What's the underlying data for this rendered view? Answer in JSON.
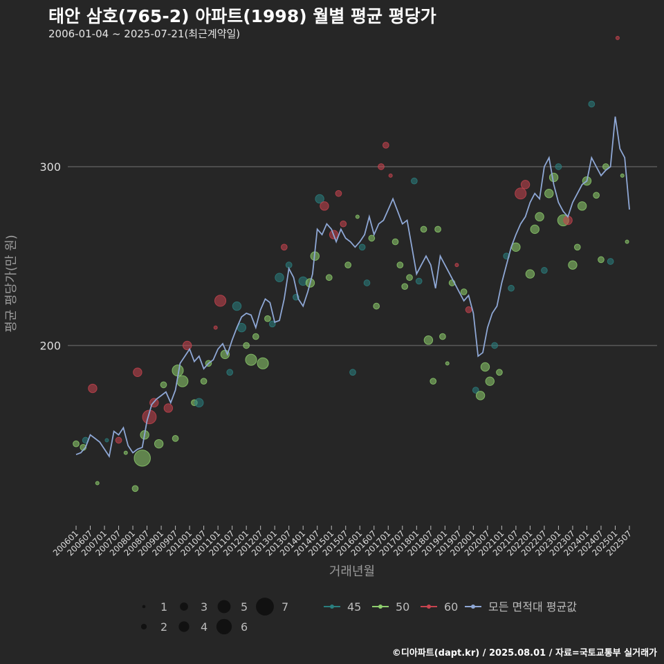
{
  "header": {
    "title": "태안 삼호(765-2) 아파트(1998) 월별 평균 평당가",
    "subtitle": "2006-01-04 ~ 2025-07-21(최근계약일)"
  },
  "footer": "©디아파트(dapt.kr) / 2025.08.01 / 자료=국토교통부 실거래가",
  "colors": {
    "background": "#262626",
    "grid": "#5a5a5a",
    "s45": "#2a7f7f",
    "s50": "#8fcf6e",
    "s60": "#c8444f",
    "avg": "#8fa8d6",
    "legend_size": "#111111"
  },
  "chart_data": {
    "type": "scatter",
    "xlabel": "거래년월",
    "ylabel": "평균 평당가(만 원)",
    "ylim": [
      100,
      370
    ],
    "yticks": [
      200,
      300
    ],
    "grid": true,
    "x_ticks": [
      "200601",
      "200607",
      "200701",
      "200707",
      "200801",
      "200807",
      "200901",
      "200907",
      "201001",
      "201007",
      "201101",
      "201107",
      "201201",
      "201207",
      "201301",
      "201307",
      "201401",
      "201407",
      "201501",
      "201507",
      "201601",
      "201607",
      "201701",
      "201707",
      "201801",
      "201807",
      "201901",
      "201907",
      "202001",
      "202007",
      "202101",
      "202107",
      "202201",
      "202207",
      "202301",
      "202307",
      "202401",
      "202407",
      "202501",
      "202507"
    ],
    "size_legend": {
      "title": "",
      "values": [
        1,
        2,
        3,
        4,
        5,
        6,
        7
      ]
    },
    "series_legend": [
      {
        "name": "45",
        "color_key": "s45"
      },
      {
        "name": "50",
        "color_key": "s50"
      },
      {
        "name": "60",
        "color_key": "s60"
      },
      {
        "name": "모든 면적대 평균값",
        "color_key": "avg"
      }
    ],
    "avg_line": [
      [
        "2006-01",
        139
      ],
      [
        "2006-03",
        140
      ],
      [
        "2006-05",
        143
      ],
      [
        "2006-07",
        150
      ],
      [
        "2006-09",
        148
      ],
      [
        "2006-11",
        146
      ],
      [
        "2007-01",
        142
      ],
      [
        "2007-03",
        138
      ],
      [
        "2007-05",
        152
      ],
      [
        "2007-07",
        150
      ],
      [
        "2007-09",
        154
      ],
      [
        "2007-11",
        144
      ],
      [
        "2008-01",
        140
      ],
      [
        "2008-03",
        142
      ],
      [
        "2008-05",
        143
      ],
      [
        "2008-07",
        158
      ],
      [
        "2008-09",
        167
      ],
      [
        "2008-11",
        170
      ],
      [
        "2009-01",
        172
      ],
      [
        "2009-03",
        174
      ],
      [
        "2009-05",
        168
      ],
      [
        "2009-07",
        175
      ],
      [
        "2009-09",
        190
      ],
      [
        "2009-11",
        194
      ],
      [
        "2010-01",
        198
      ],
      [
        "2010-03",
        191
      ],
      [
        "2010-05",
        194
      ],
      [
        "2010-07",
        187
      ],
      [
        "2010-09",
        190
      ],
      [
        "2010-11",
        192
      ],
      [
        "2011-01",
        198
      ],
      [
        "2011-03",
        201
      ],
      [
        "2011-05",
        195
      ],
      [
        "2011-07",
        203
      ],
      [
        "2011-09",
        210
      ],
      [
        "2011-11",
        216
      ],
      [
        "2012-01",
        218
      ],
      [
        "2012-03",
        217
      ],
      [
        "2012-05",
        210
      ],
      [
        "2012-07",
        220
      ],
      [
        "2012-09",
        226
      ],
      [
        "2012-11",
        224
      ],
      [
        "2013-01",
        213
      ],
      [
        "2013-03",
        214
      ],
      [
        "2013-05",
        226
      ],
      [
        "2013-07",
        243
      ],
      [
        "2013-09",
        238
      ],
      [
        "2013-11",
        226
      ],
      [
        "2014-01",
        222
      ],
      [
        "2014-03",
        230
      ],
      [
        "2014-05",
        240
      ],
      [
        "2014-07",
        265
      ],
      [
        "2014-09",
        262
      ],
      [
        "2014-11",
        268
      ],
      [
        "2015-01",
        265
      ],
      [
        "2015-03",
        258
      ],
      [
        "2015-05",
        265
      ],
      [
        "2015-07",
        260
      ],
      [
        "2015-09",
        258
      ],
      [
        "2015-11",
        255
      ],
      [
        "2016-01",
        258
      ],
      [
        "2016-03",
        262
      ],
      [
        "2016-05",
        272
      ],
      [
        "2016-07",
        262
      ],
      [
        "2016-09",
        268
      ],
      [
        "2016-11",
        270
      ],
      [
        "2017-01",
        276
      ],
      [
        "2017-03",
        282
      ],
      [
        "2017-05",
        275
      ],
      [
        "2017-07",
        268
      ],
      [
        "2017-09",
        270
      ],
      [
        "2017-11",
        255
      ],
      [
        "2018-01",
        240
      ],
      [
        "2018-03",
        245
      ],
      [
        "2018-05",
        250
      ],
      [
        "2018-07",
        245
      ],
      [
        "2018-09",
        232
      ],
      [
        "2018-11",
        250
      ],
      [
        "2019-01",
        245
      ],
      [
        "2019-03",
        240
      ],
      [
        "2019-05",
        235
      ],
      [
        "2019-07",
        230
      ],
      [
        "2019-09",
        225
      ],
      [
        "2019-11",
        228
      ],
      [
        "2020-01",
        218
      ],
      [
        "2020-03",
        194
      ],
      [
        "2020-05",
        196
      ],
      [
        "2020-07",
        210
      ],
      [
        "2020-09",
        218
      ],
      [
        "2020-11",
        222
      ],
      [
        "2021-01",
        235
      ],
      [
        "2021-03",
        245
      ],
      [
        "2021-05",
        255
      ],
      [
        "2021-07",
        262
      ],
      [
        "2021-09",
        268
      ],
      [
        "2021-11",
        272
      ],
      [
        "2022-01",
        280
      ],
      [
        "2022-03",
        285
      ],
      [
        "2022-05",
        282
      ],
      [
        "2022-07",
        300
      ],
      [
        "2022-09",
        305
      ],
      [
        "2022-11",
        290
      ],
      [
        "2023-01",
        280
      ],
      [
        "2023-03",
        275
      ],
      [
        "2023-05",
        272
      ],
      [
        "2023-07",
        280
      ],
      [
        "2023-09",
        285
      ],
      [
        "2023-11",
        290
      ],
      [
        "2024-01",
        292
      ],
      [
        "2024-03",
        305
      ],
      [
        "2024-05",
        300
      ],
      [
        "2024-07",
        295
      ],
      [
        "2024-09",
        298
      ],
      [
        "2024-11",
        300
      ],
      [
        "2025-01",
        328
      ],
      [
        "2025-03",
        310
      ],
      [
        "2025-05",
        305
      ],
      [
        "2025-07",
        276
      ]
    ],
    "points": [
      [
        "2006-01",
        145,
        "50",
        2
      ],
      [
        "2006-04",
        143,
        "50",
        2
      ],
      [
        "2006-05",
        147,
        "45",
        2
      ],
      [
        "2006-08",
        176,
        "60",
        3
      ],
      [
        "2006-10",
        123,
        "50",
        1
      ],
      [
        "2007-02",
        147,
        "45",
        1
      ],
      [
        "2007-07",
        147,
        "60",
        2
      ],
      [
        "2007-10",
        140,
        "50",
        1
      ],
      [
        "2008-02",
        120,
        "50",
        2
      ],
      [
        "2008-05",
        137,
        "50",
        6
      ],
      [
        "2008-06",
        150,
        "50",
        3
      ],
      [
        "2008-03",
        185,
        "60",
        3
      ],
      [
        "2008-08",
        160,
        "60",
        5
      ],
      [
        "2008-10",
        168,
        "60",
        3
      ],
      [
        "2008-12",
        145,
        "50",
        3
      ],
      [
        "2009-02",
        178,
        "50",
        2
      ],
      [
        "2009-04",
        165,
        "60",
        3
      ],
      [
        "2009-07",
        148,
        "50",
        2
      ],
      [
        "2009-08",
        186,
        "50",
        4
      ],
      [
        "2009-10",
        180,
        "50",
        4
      ],
      [
        "2009-12",
        200,
        "60",
        3
      ],
      [
        "2010-03",
        168,
        "50",
        2
      ],
      [
        "2010-05",
        168,
        "45",
        3
      ],
      [
        "2010-07",
        180,
        "50",
        2
      ],
      [
        "2010-09",
        190,
        "50",
        2
      ],
      [
        "2010-12",
        210,
        "60",
        1
      ],
      [
        "2011-02",
        225,
        "60",
        4
      ],
      [
        "2011-04",
        195,
        "50",
        3
      ],
      [
        "2011-06",
        185,
        "45",
        2
      ],
      [
        "2011-09",
        222,
        "45",
        3
      ],
      [
        "2011-11",
        210,
        "45",
        3
      ],
      [
        "2012-01",
        200,
        "50",
        2
      ],
      [
        "2012-03",
        192,
        "50",
        4
      ],
      [
        "2012-05",
        205,
        "50",
        2
      ],
      [
        "2012-08",
        190,
        "50",
        4
      ],
      [
        "2012-10",
        215,
        "50",
        2
      ],
      [
        "2012-12",
        212,
        "45",
        2
      ],
      [
        "2013-03",
        238,
        "45",
        3
      ],
      [
        "2013-05",
        255,
        "60",
        2
      ],
      [
        "2013-07",
        245,
        "45",
        2
      ],
      [
        "2013-10",
        227,
        "45",
        2
      ],
      [
        "2014-01",
        236,
        "45",
        3
      ],
      [
        "2014-04",
        235,
        "50",
        3
      ],
      [
        "2014-06",
        250,
        "50",
        3
      ],
      [
        "2014-08",
        282,
        "45",
        3
      ],
      [
        "2014-10",
        278,
        "60",
        3
      ],
      [
        "2014-12",
        238,
        "50",
        2
      ],
      [
        "2015-02",
        262,
        "60",
        3
      ],
      [
        "2015-04",
        285,
        "60",
        2
      ],
      [
        "2015-06",
        268,
        "60",
        2
      ],
      [
        "2015-08",
        245,
        "50",
        2
      ],
      [
        "2015-10",
        185,
        "45",
        2
      ],
      [
        "2015-12",
        272,
        "50",
        1
      ],
      [
        "2016-02",
        255,
        "45",
        2
      ],
      [
        "2016-04",
        235,
        "45",
        2
      ],
      [
        "2016-06",
        260,
        "50",
        2
      ],
      [
        "2016-08",
        222,
        "50",
        2
      ],
      [
        "2016-10",
        300,
        "60",
        2
      ],
      [
        "2016-12",
        312,
        "60",
        2
      ],
      [
        "2017-02",
        295,
        "60",
        1
      ],
      [
        "2017-04",
        258,
        "50",
        2
      ],
      [
        "2017-06",
        245,
        "50",
        2
      ],
      [
        "2017-08",
        233,
        "50",
        2
      ],
      [
        "2017-10",
        238,
        "50",
        2
      ],
      [
        "2017-12",
        292,
        "45",
        2
      ],
      [
        "2018-02",
        236,
        "45",
        2
      ],
      [
        "2018-04",
        265,
        "50",
        2
      ],
      [
        "2018-06",
        203,
        "50",
        3
      ],
      [
        "2018-08",
        180,
        "50",
        2
      ],
      [
        "2018-10",
        265,
        "50",
        2
      ],
      [
        "2018-12",
        205,
        "50",
        2
      ],
      [
        "2019-02",
        190,
        "50",
        1
      ],
      [
        "2019-04",
        235,
        "50",
        2
      ],
      [
        "2019-06",
        245,
        "60",
        1
      ],
      [
        "2019-09",
        230,
        "50",
        2
      ],
      [
        "2019-11",
        220,
        "60",
        2
      ],
      [
        "2020-02",
        175,
        "45",
        2
      ],
      [
        "2020-04",
        172,
        "50",
        3
      ],
      [
        "2020-06",
        188,
        "50",
        3
      ],
      [
        "2020-08",
        180,
        "50",
        3
      ],
      [
        "2020-10",
        200,
        "45",
        2
      ],
      [
        "2020-12",
        185,
        "50",
        2
      ],
      [
        "2021-03",
        250,
        "45",
        2
      ],
      [
        "2021-05",
        232,
        "45",
        2
      ],
      [
        "2021-07",
        255,
        "50",
        3
      ],
      [
        "2021-09",
        285,
        "60",
        4
      ],
      [
        "2021-11",
        290,
        "60",
        3
      ],
      [
        "2022-01",
        240,
        "50",
        3
      ],
      [
        "2022-03",
        265,
        "50",
        3
      ],
      [
        "2022-05",
        272,
        "50",
        3
      ],
      [
        "2022-07",
        242,
        "45",
        2
      ],
      [
        "2022-09",
        285,
        "50",
        3
      ],
      [
        "2022-11",
        294,
        "50",
        3
      ],
      [
        "2023-01",
        300,
        "45",
        2
      ],
      [
        "2023-03",
        270,
        "50",
        4
      ],
      [
        "2023-05",
        270,
        "60",
        3
      ],
      [
        "2023-07",
        245,
        "50",
        3
      ],
      [
        "2023-09",
        255,
        "50",
        2
      ],
      [
        "2023-11",
        278,
        "50",
        3
      ],
      [
        "2024-01",
        292,
        "50",
        3
      ],
      [
        "2024-03",
        335,
        "45",
        2
      ],
      [
        "2024-05",
        284,
        "50",
        2
      ],
      [
        "2024-07",
        248,
        "50",
        2
      ],
      [
        "2024-09",
        300,
        "50",
        2
      ],
      [
        "2024-11",
        247,
        "45",
        2
      ],
      [
        "2025-02",
        372,
        "60",
        1
      ],
      [
        "2025-04",
        295,
        "50",
        1
      ],
      [
        "2025-06",
        258,
        "50",
        1
      ]
    ]
  }
}
